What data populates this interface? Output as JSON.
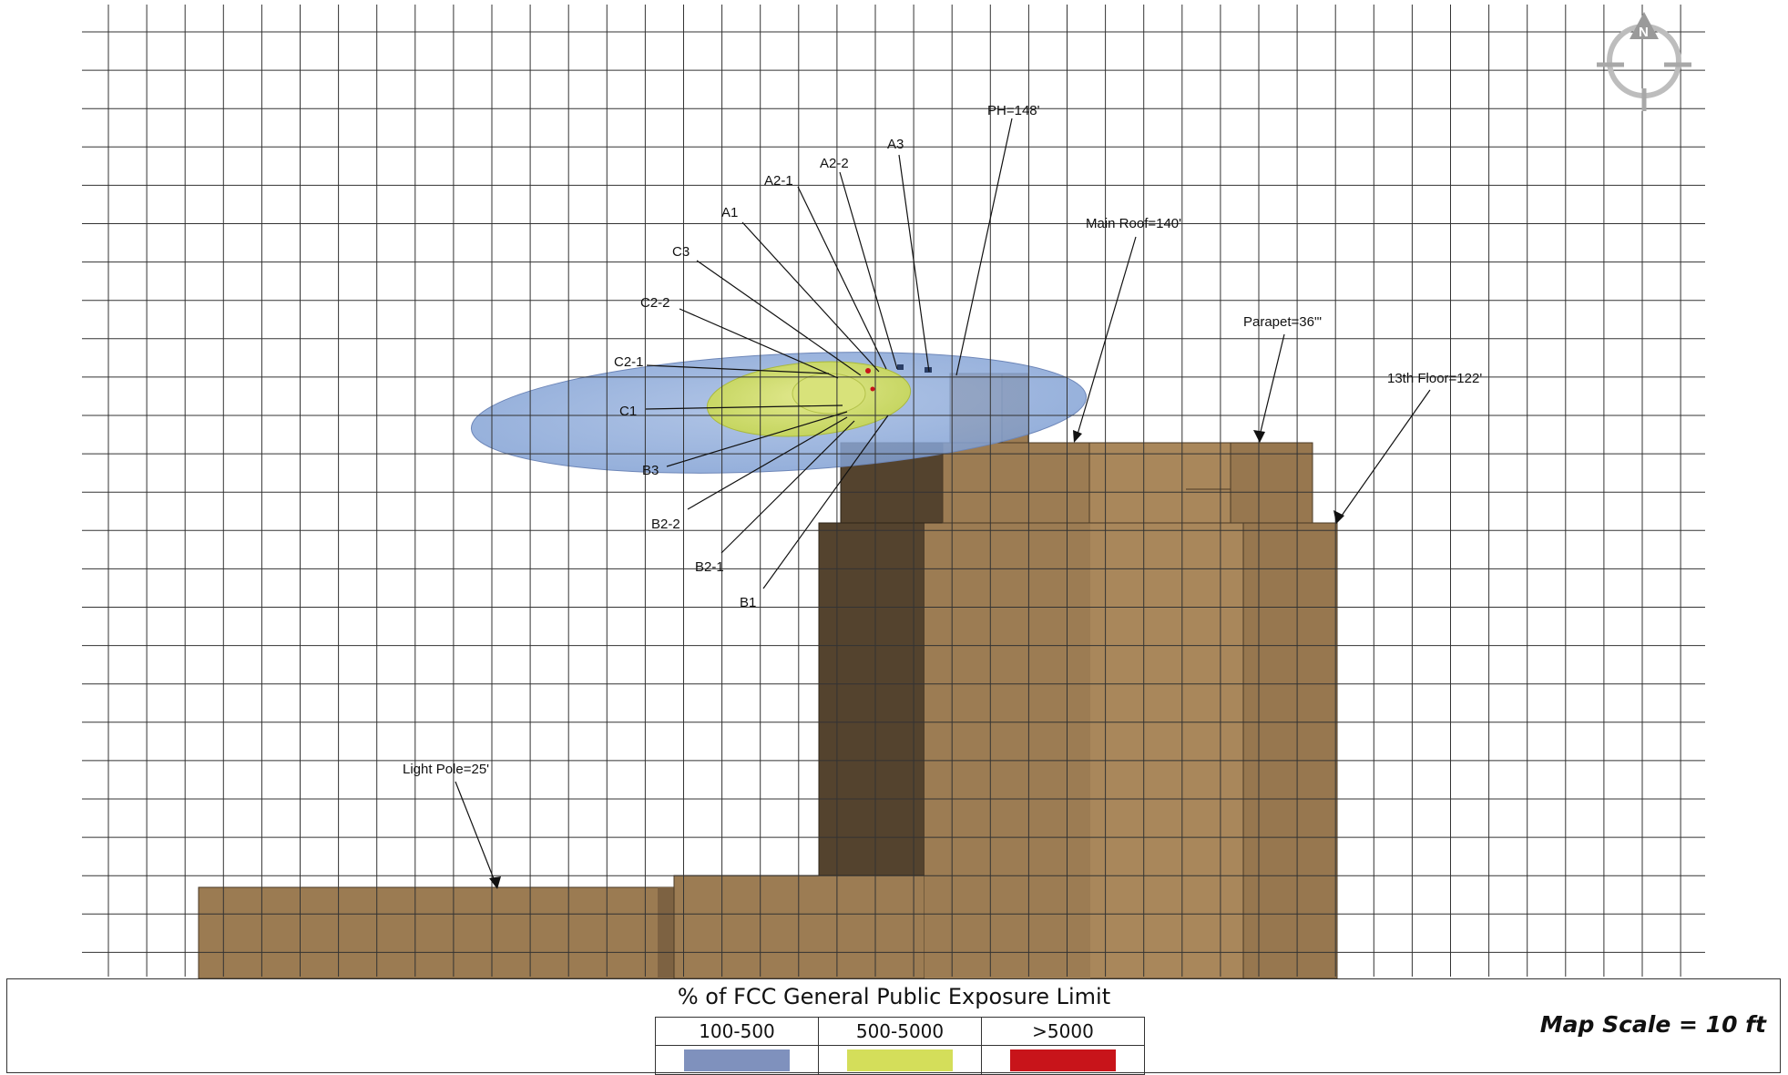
{
  "labels": {
    "ph": "PH=148'",
    "a3": "A3",
    "a2_2": "A2-2",
    "a2_1": "A2-1",
    "a1": "A1",
    "c3": "C3",
    "c2_2": "C2-2",
    "c2_1": "C2-1",
    "c1": "C1",
    "b3": "B3",
    "b2_2": "B2-2",
    "b2_1": "B2-1",
    "b1": "B1",
    "main_roof": "Main Roof=140'",
    "parapet": "Parapet=36\"'",
    "floor13": "13th Floor=122'",
    "light_pole": "Light Pole=25'"
  },
  "compass": {
    "letter": "N",
    "icon": "north-arrow-icon"
  },
  "legend": {
    "title": "% of FCC General Public Exposure Limit",
    "ranges": [
      {
        "label": "100-500",
        "color": "#7f91bd"
      },
      {
        "label": "500-5000",
        "color": "#d4de5a"
      },
      {
        "label": ">5000",
        "color": "#c8141a"
      }
    ]
  },
  "map_scale": "Map Scale = 10 ft",
  "colors": {
    "building_light": "#a9875b",
    "building_mid": "#9b7b52",
    "building_dark": "#54432e",
    "plume_blue": "#7f9fd3",
    "plume_yellow": "#d0dd5e",
    "grid": "#333333"
  }
}
